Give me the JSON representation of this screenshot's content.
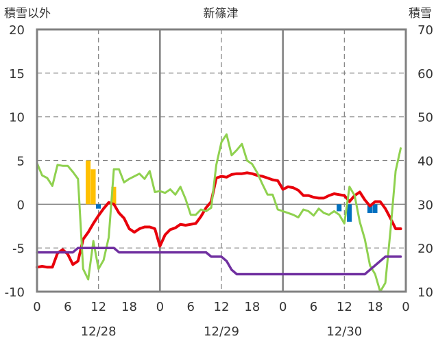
{
  "chart_data": {
    "type": "line",
    "title": "新篠津",
    "ylabel_left": "積雪以外",
    "ylabel_right": "積雪",
    "ylim_left": [
      -10,
      20
    ],
    "ylim_right": [
      10,
      70
    ],
    "yticks_left": [
      "20",
      "15",
      "10",
      "5",
      "0",
      "-5",
      "-10"
    ],
    "yticks_right": [
      "70",
      "60",
      "50",
      "40",
      "30",
      "20",
      "10"
    ],
    "xlim": [
      0,
      72
    ],
    "xticks": [
      "0",
      "6",
      "12",
      "18",
      "0",
      "6",
      "12",
      "18",
      "0",
      "6",
      "12",
      "18",
      "0"
    ],
    "date_labels": [
      "12/28",
      "12/29",
      "12/30"
    ],
    "grid": {
      "solid_x": [
        0,
        24,
        48,
        72
      ],
      "dashed_x": [
        12,
        36,
        60
      ],
      "dashed_y": [
        15,
        10,
        5,
        -5
      ]
    },
    "colors": {
      "temperature": "#e8000b",
      "snow_depth": "#7030a0",
      "wind": "#8fd14f",
      "precip_bar": "#ffc000",
      "sun_bar": "#0070c0"
    },
    "series": [
      {
        "key": "temperature",
        "axis": "left",
        "x": [
          0,
          1,
          2,
          3,
          4,
          5,
          6,
          7,
          8,
          9,
          10,
          11,
          12,
          13,
          14,
          15,
          16,
          17,
          18,
          19,
          20,
          21,
          22,
          23,
          24,
          25,
          26,
          27,
          28,
          29,
          30,
          31,
          32,
          33,
          34,
          35,
          36,
          37,
          38,
          39,
          40,
          41,
          42,
          43,
          44,
          45,
          46,
          47,
          48,
          49,
          50,
          51,
          52,
          53,
          54,
          55,
          56,
          57,
          58,
          59,
          60,
          61,
          62,
          63,
          64,
          65,
          66,
          67,
          68,
          69,
          70,
          71
        ],
        "values": [
          -7.2,
          -7.1,
          -7.2,
          -7.2,
          -5.6,
          -5.2,
          -5.7,
          -6.9,
          -6.5,
          -4,
          -3.2,
          -2.2,
          -1.3,
          -0.5,
          0.2,
          0,
          -1,
          -1.6,
          -2.8,
          -3.2,
          -2.8,
          -2.6,
          -2.6,
          -2.8,
          -4.8,
          -3.5,
          -2.9,
          -2.7,
          -2.3,
          -2.4,
          -2.3,
          -2.2,
          -1.4,
          -0.4,
          0.3,
          3,
          3.2,
          3.1,
          3.4,
          3.5,
          3.5,
          3.6,
          3.5,
          3.3,
          3.2,
          3,
          2.8,
          2.7,
          1.7,
          2,
          1.9,
          1.6,
          1,
          1,
          0.8,
          0.7,
          0.7,
          1,
          1.2,
          1.1,
          1,
          0.3,
          1,
          1.4,
          0.5,
          -0.2,
          0.3,
          0.3,
          -0.5,
          -1.6,
          -2.8,
          -2.8
        ]
      },
      {
        "key": "wind",
        "axis": "left",
        "x": [
          0,
          1,
          2,
          3,
          4,
          5,
          6,
          7,
          8,
          9,
          10,
          11,
          12,
          13,
          14,
          15,
          16,
          17,
          18,
          19,
          20,
          21,
          22,
          23,
          24,
          25,
          26,
          27,
          28,
          29,
          30,
          31,
          32,
          33,
          34,
          35,
          36,
          37,
          38,
          39,
          40,
          41,
          42,
          43,
          44,
          45,
          46,
          47,
          48,
          49,
          50,
          51,
          52,
          53,
          54,
          55,
          56,
          57,
          58,
          59,
          60,
          61,
          62,
          63,
          64,
          65,
          66,
          67,
          68,
          69,
          70,
          71
        ],
        "values": [
          4.7,
          3.3,
          3,
          2.1,
          4.5,
          4.4,
          4.4,
          3.7,
          2.9,
          -7.4,
          -8.6,
          -4.2,
          -7.4,
          -6.4,
          -3.8,
          4,
          4,
          2.5,
          2.9,
          3.2,
          3.5,
          2.9,
          3.8,
          1.4,
          1.5,
          1.3,
          1.7,
          1.1,
          2,
          0.6,
          -1.2,
          -1.2,
          -0.6,
          -0.8,
          -0.4,
          4.5,
          7.1,
          8,
          5.6,
          6.2,
          6.9,
          5,
          4.6,
          3.6,
          2.3,
          1.1,
          1.1,
          -0.6,
          -0.8,
          -1,
          -1.2,
          -1.5,
          -0.6,
          -0.8,
          -1.3,
          -0.5,
          -1,
          -1.2,
          -0.8,
          -1.2,
          -2.2,
          2,
          1,
          -2,
          -4,
          -7,
          -8,
          -10,
          -9,
          -3,
          3.8,
          6.4
        ]
      },
      {
        "key": "snow_depth",
        "axis": "right",
        "x": [
          0,
          1,
          2,
          3,
          4,
          5,
          6,
          7,
          8,
          9,
          10,
          11,
          12,
          13,
          14,
          15,
          16,
          17,
          18,
          19,
          20,
          21,
          22,
          23,
          24,
          25,
          26,
          27,
          28,
          29,
          30,
          31,
          32,
          33,
          34,
          35,
          36,
          37,
          38,
          39,
          40,
          41,
          42,
          43,
          44,
          45,
          46,
          47,
          48,
          49,
          50,
          51,
          52,
          53,
          54,
          55,
          56,
          57,
          58,
          59,
          60,
          61,
          62,
          63,
          64,
          65,
          66,
          67,
          68,
          69,
          70,
          71
        ],
        "values": [
          19,
          19,
          19,
          19,
          19,
          19,
          19,
          19,
          20,
          20,
          20,
          20,
          20,
          20,
          20,
          20,
          19,
          19,
          19,
          19,
          19,
          19,
          19,
          19,
          19,
          19,
          19,
          19,
          19,
          19,
          19,
          19,
          19,
          19,
          18,
          18,
          18,
          17,
          15,
          14,
          14,
          14,
          14,
          14,
          14,
          14,
          14,
          14,
          14,
          14,
          14,
          14,
          14,
          14,
          14,
          14,
          14,
          14,
          14,
          14,
          14,
          14,
          14,
          14,
          14,
          15,
          16,
          17,
          18,
          18,
          18,
          18
        ]
      }
    ],
    "bars": [
      {
        "key": "precip_bar",
        "axis": "left",
        "x": [
          10,
          11,
          15
        ],
        "values": [
          5,
          4,
          2
        ]
      },
      {
        "key": "sun_bar",
        "axis": "left",
        "x": [
          12,
          59,
          61,
          65,
          66
        ],
        "values": [
          -0.5,
          -0.8,
          -2,
          -1,
          -1
        ]
      }
    ]
  }
}
